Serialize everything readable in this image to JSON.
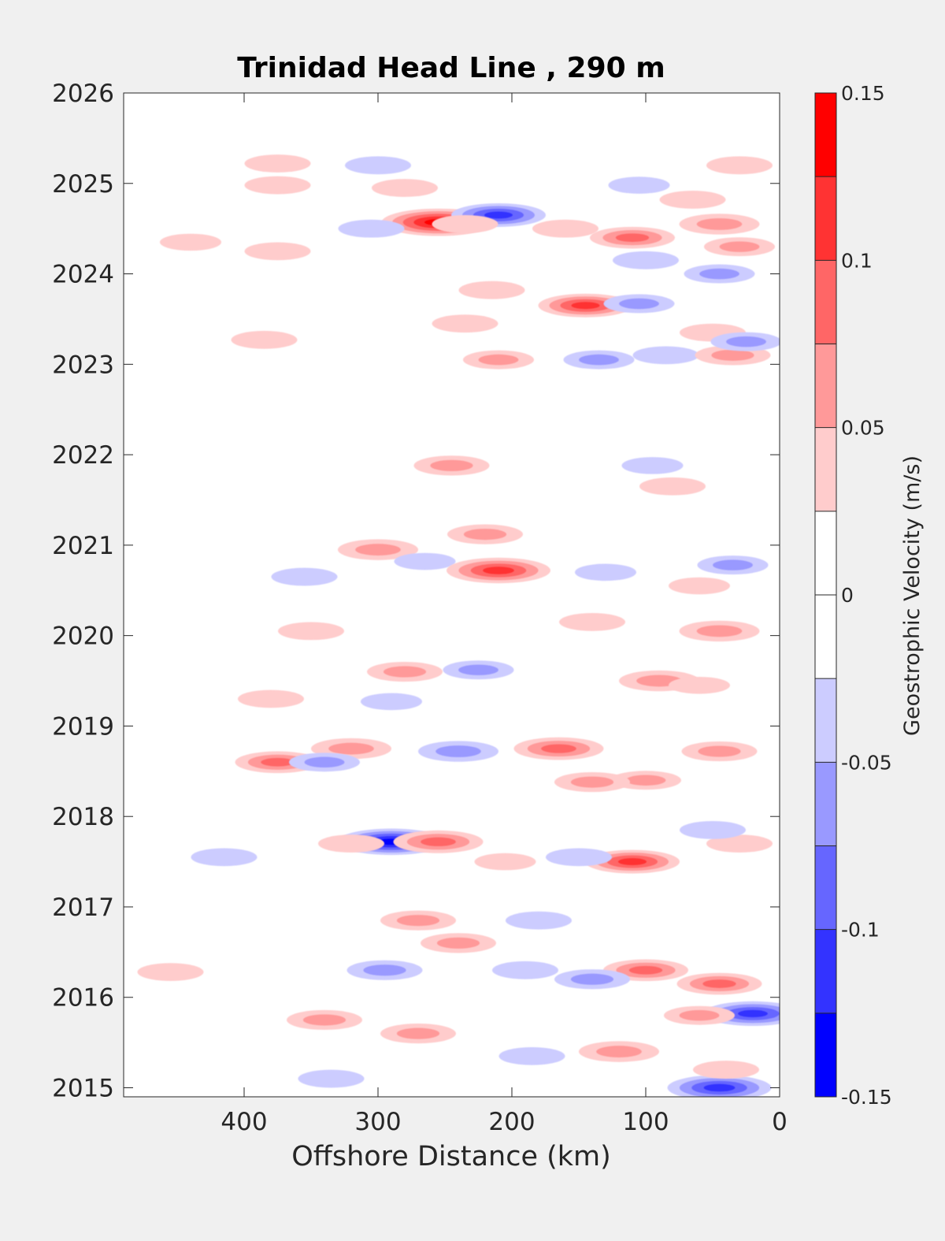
{
  "chart_data": {
    "type": "heatmap",
    "title": "Trinidad Head Line , 290 m",
    "xlabel": "Offshore Distance (km)",
    "xlim": [
      490,
      0
    ],
    "xticks": [
      "400",
      "300",
      "200",
      "100",
      "0"
    ],
    "ylabel": "",
    "ylim": [
      2014.9,
      2026
    ],
    "yticks": [
      "2026",
      "2025",
      "2024",
      "2023",
      "2022",
      "2021",
      "2020",
      "2019",
      "2018",
      "2017",
      "2016",
      "2015"
    ],
    "colorbar": {
      "label": "Geostrophic Velocity (m/s)",
      "range": [
        -0.15,
        0.15
      ],
      "tick_labels": [
        "0.15",
        "0.1",
        "0.05",
        "0",
        "-0.05",
        "-0.1",
        "-0.15"
      ],
      "levels": [
        {
          "from": 0.125,
          "to": 0.15,
          "color": "#ff0000"
        },
        {
          "from": 0.1,
          "to": 0.125,
          "color": "#ff3333"
        },
        {
          "from": 0.075,
          "to": 0.1,
          "color": "#ff6666"
        },
        {
          "from": 0.05,
          "to": 0.075,
          "color": "#ff9999"
        },
        {
          "from": 0.025,
          "to": 0.05,
          "color": "#ffcccc"
        },
        {
          "from": 0,
          "to": 0.025,
          "color": "#ffffff"
        },
        {
          "from": -0.025,
          "to": 0,
          "color": "#ffffff"
        },
        {
          "from": -0.05,
          "to": -0.025,
          "color": "#ccccff"
        },
        {
          "from": -0.075,
          "to": -0.05,
          "color": "#9999ff"
        },
        {
          "from": -0.1,
          "to": -0.075,
          "color": "#6666ff"
        },
        {
          "from": -0.125,
          "to": -0.1,
          "color": "#3333ff"
        },
        {
          "from": -0.15,
          "to": -0.125,
          "color": "#0000ff"
        }
      ]
    },
    "features": [
      {
        "x": 375,
        "t": 2025.22,
        "v": 0.04
      },
      {
        "x": 300,
        "t": 2025.2,
        "v": -0.04
      },
      {
        "x": 30,
        "t": 2025.2,
        "v": 0.04
      },
      {
        "x": 375,
        "t": 2024.98,
        "v": 0.04
      },
      {
        "x": 280,
        "t": 2024.95,
        "v": 0.04
      },
      {
        "x": 105,
        "t": 2024.98,
        "v": -0.03
      },
      {
        "x": 65,
        "t": 2024.82,
        "v": 0.04
      },
      {
        "x": 255,
        "t": 2024.57,
        "v": 0.14
      },
      {
        "x": 210,
        "t": 2024.65,
        "v": -0.1
      },
      {
        "x": 305,
        "t": 2024.5,
        "v": -0.04
      },
      {
        "x": 235,
        "t": 2024.55,
        "v": 0.04
      },
      {
        "x": 160,
        "t": 2024.5,
        "v": 0.04
      },
      {
        "x": 110,
        "t": 2024.4,
        "v": 0.08
      },
      {
        "x": 45,
        "t": 2024.55,
        "v": 0.07
      },
      {
        "x": 30,
        "t": 2024.3,
        "v": 0.05
      },
      {
        "x": 440,
        "t": 2024.35,
        "v": 0.03
      },
      {
        "x": 375,
        "t": 2024.25,
        "v": 0.04
      },
      {
        "x": 45,
        "t": 2024.0,
        "v": -0.05
      },
      {
        "x": 100,
        "t": 2024.15,
        "v": -0.04
      },
      {
        "x": 215,
        "t": 2023.82,
        "v": 0.04
      },
      {
        "x": 145,
        "t": 2023.65,
        "v": 0.1
      },
      {
        "x": 105,
        "t": 2023.67,
        "v": -0.05
      },
      {
        "x": 235,
        "t": 2023.45,
        "v": 0.04
      },
      {
        "x": 385,
        "t": 2023.27,
        "v": 0.04
      },
      {
        "x": 50,
        "t": 2023.35,
        "v": 0.04
      },
      {
        "x": 85,
        "t": 2023.1,
        "v": -0.04
      },
      {
        "x": 35,
        "t": 2023.1,
        "v": 0.06
      },
      {
        "x": 210,
        "t": 2023.05,
        "v": 0.05
      },
      {
        "x": 135,
        "t": 2023.05,
        "v": -0.05
      },
      {
        "x": 25,
        "t": 2023.25,
        "v": -0.05
      },
      {
        "x": 245,
        "t": 2021.88,
        "v": 0.06
      },
      {
        "x": 80,
        "t": 2021.65,
        "v": 0.04
      },
      {
        "x": 95,
        "t": 2021.88,
        "v": -0.03
      },
      {
        "x": 220,
        "t": 2021.12,
        "v": 0.06
      },
      {
        "x": 300,
        "t": 2020.95,
        "v": 0.07
      },
      {
        "x": 265,
        "t": 2020.82,
        "v": -0.03
      },
      {
        "x": 210,
        "t": 2020.72,
        "v": 0.12
      },
      {
        "x": 355,
        "t": 2020.65,
        "v": -0.04
      },
      {
        "x": 35,
        "t": 2020.78,
        "v": -0.05
      },
      {
        "x": 130,
        "t": 2020.7,
        "v": -0.03
      },
      {
        "x": 60,
        "t": 2020.55,
        "v": 0.03
      },
      {
        "x": 350,
        "t": 2020.05,
        "v": 0.04
      },
      {
        "x": 45,
        "t": 2020.05,
        "v": 0.07
      },
      {
        "x": 140,
        "t": 2020.15,
        "v": 0.04
      },
      {
        "x": 280,
        "t": 2019.6,
        "v": 0.06
      },
      {
        "x": 225,
        "t": 2019.62,
        "v": -0.05
      },
      {
        "x": 90,
        "t": 2019.5,
        "v": 0.07
      },
      {
        "x": 380,
        "t": 2019.3,
        "v": 0.04
      },
      {
        "x": 290,
        "t": 2019.27,
        "v": -0.03
      },
      {
        "x": 60,
        "t": 2019.45,
        "v": 0.03
      },
      {
        "x": 320,
        "t": 2018.75,
        "v": 0.07
      },
      {
        "x": 240,
        "t": 2018.72,
        "v": -0.07
      },
      {
        "x": 165,
        "t": 2018.75,
        "v": 0.09
      },
      {
        "x": 45,
        "t": 2018.72,
        "v": 0.06
      },
      {
        "x": 375,
        "t": 2018.6,
        "v": 0.08
      },
      {
        "x": 340,
        "t": 2018.6,
        "v": -0.05
      },
      {
        "x": 100,
        "t": 2018.4,
        "v": 0.05
      },
      {
        "x": 140,
        "t": 2018.38,
        "v": 0.06
      },
      {
        "x": 290,
        "t": 2017.72,
        "v": -0.13
      },
      {
        "x": 255,
        "t": 2017.72,
        "v": 0.09
      },
      {
        "x": 320,
        "t": 2017.7,
        "v": 0.04
      },
      {
        "x": 110,
        "t": 2017.5,
        "v": 0.1
      },
      {
        "x": 30,
        "t": 2017.7,
        "v": 0.04
      },
      {
        "x": 415,
        "t": 2017.55,
        "v": -0.04
      },
      {
        "x": 150,
        "t": 2017.55,
        "v": -0.04
      },
      {
        "x": 205,
        "t": 2017.5,
        "v": 0.03
      },
      {
        "x": 50,
        "t": 2017.85,
        "v": -0.04
      },
      {
        "x": 270,
        "t": 2016.85,
        "v": 0.06
      },
      {
        "x": 180,
        "t": 2016.85,
        "v": -0.04
      },
      {
        "x": 240,
        "t": 2016.6,
        "v": 0.06
      },
      {
        "x": 100,
        "t": 2016.3,
        "v": 0.08
      },
      {
        "x": 45,
        "t": 2016.15,
        "v": 0.08
      },
      {
        "x": 140,
        "t": 2016.2,
        "v": -0.06
      },
      {
        "x": 295,
        "t": 2016.3,
        "v": -0.06
      },
      {
        "x": 455,
        "t": 2016.28,
        "v": 0.04
      },
      {
        "x": 190,
        "t": 2016.3,
        "v": -0.04
      },
      {
        "x": 340,
        "t": 2015.75,
        "v": 0.06
      },
      {
        "x": 270,
        "t": 2015.6,
        "v": 0.06
      },
      {
        "x": 20,
        "t": 2015.82,
        "v": -0.11
      },
      {
        "x": 60,
        "t": 2015.8,
        "v": 0.05
      },
      {
        "x": 120,
        "t": 2015.4,
        "v": 0.07
      },
      {
        "x": 185,
        "t": 2015.35,
        "v": -0.04
      },
      {
        "x": 45,
        "t": 2015.0,
        "v": -0.12
      },
      {
        "x": 335,
        "t": 2015.1,
        "v": -0.04
      },
      {
        "x": 40,
        "t": 2015.2,
        "v": 0.04
      }
    ]
  }
}
